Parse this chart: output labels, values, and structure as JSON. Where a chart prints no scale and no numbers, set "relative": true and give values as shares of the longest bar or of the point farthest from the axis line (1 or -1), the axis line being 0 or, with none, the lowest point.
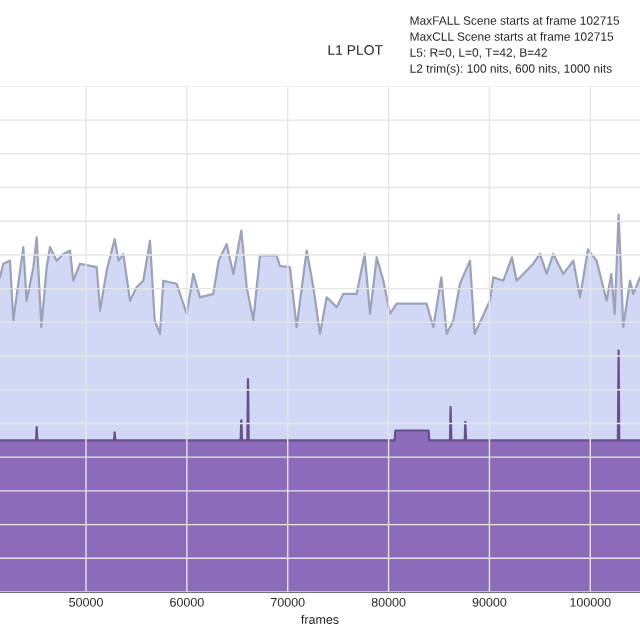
{
  "chart_data": {
    "type": "area",
    "title": "L1 PLOT",
    "xlabel": "frames",
    "annotations": [
      "MaxFALL Scene starts at frame 102715",
      "MaxCLL Scene starts at frame 102715",
      "L5: R=0, L=0, T=42, B=42",
      "L2 trim(s): 100 nits, 600 nits, 1000 nits"
    ],
    "relative": true,
    "tick_labels": "x",
    "grid": true,
    "xlim": [
      41470,
      104930
    ],
    "xticks": [
      50000,
      60000,
      70000,
      80000,
      90000,
      100000
    ],
    "series": [
      {
        "color": "#d0d8f5",
        "x": [
          41470,
          41800,
          42460,
          42790,
          43780,
          44110,
          44780,
          45110,
          45570,
          46100,
          46430,
          47090,
          47750,
          48410,
          48740,
          49400,
          51060,
          51390,
          52050,
          52840,
          53240,
          53700,
          54360,
          55020,
          55680,
          56340,
          56810,
          57330,
          57660,
          58990,
          59980,
          60640,
          61300,
          62620,
          63150,
          63940,
          64610,
          65400,
          65930,
          66590,
          67250,
          68900,
          69230,
          70220,
          70880,
          71880,
          72540,
          73200,
          73860,
          74850,
          75510,
          76830,
          77630,
          78160,
          78820,
          79480,
          80140,
          80800,
          83770,
          84440,
          85230,
          85760,
          86420,
          87080,
          88070,
          88530,
          90050,
          90380,
          91380,
          92230,
          92700,
          94350,
          95010,
          95670,
          96330,
          97320,
          98320,
          98980,
          99770,
          100630,
          101620,
          102080,
          102420,
          102810,
          103270,
          103940,
          104270,
          104930
        ],
        "values": [
          0.834,
          0.87,
          0.878,
          0.72,
          0.914,
          0.772,
          0.861,
          0.94,
          0.702,
          0.861,
          0.914,
          0.878,
          0.896,
          0.905,
          0.825,
          0.87,
          0.861,
          0.746,
          0.852,
          0.935,
          0.878,
          0.896,
          0.772,
          0.808,
          0.825,
          0.931,
          0.72,
          0.684,
          0.825,
          0.817,
          0.737,
          0.843,
          0.781,
          0.79,
          0.878,
          0.922,
          0.843,
          0.958,
          0.808,
          0.72,
          0.892,
          0.892,
          0.864,
          0.861,
          0.702,
          0.905,
          0.808,
          0.684,
          0.781,
          0.755,
          0.79,
          0.79,
          0.896,
          0.737,
          0.887,
          0.825,
          0.737,
          0.764,
          0.764,
          0.702,
          0.834,
          0.684,
          0.72,
          0.817,
          0.878,
          0.684,
          0.772,
          0.834,
          0.825,
          0.887,
          0.825,
          0.87,
          0.896,
          0.843,
          0.896,
          0.843,
          0.878,
          0.781,
          0.908,
          0.878,
          0.772,
          0.843,
          0.737,
          1.0,
          0.702,
          0.825,
          0.79,
          0.834
        ]
      },
      {
        "color": "#8c6bbb",
        "x": [
          41470,
          45050,
          45110,
          45170,
          52780,
          52840,
          52900,
          65330,
          65400,
          65470,
          66000,
          66060,
          66130,
          80600,
          80670,
          83970,
          84040,
          86090,
          86150,
          86220,
          87550,
          87610,
          87680,
          102740,
          102810,
          102870,
          104930
        ],
        "values": [
          0.402,
          0.402,
          0.437,
          0.402,
          0.402,
          0.423,
          0.402,
          0.402,
          0.455,
          0.402,
          0.402,
          0.564,
          0.402,
          0.402,
          0.428,
          0.428,
          0.402,
          0.402,
          0.49,
          0.402,
          0.402,
          0.451,
          0.402,
          0.402,
          0.64,
          0.402,
          0.402
        ]
      }
    ]
  }
}
